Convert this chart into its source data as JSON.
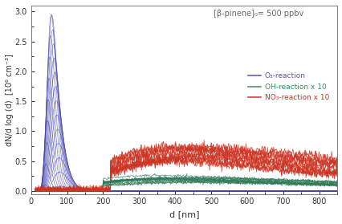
{
  "title_annotation": "[β-pinene]₀= 500 ppbv",
  "xlabel": "d [nm]",
  "ylabel": "dN/d log (d)  [10⁶ cm⁻³]",
  "xlim": [
    10,
    850
  ],
  "ylim": [
    -0.05,
    3.1
  ],
  "yticks": [
    0,
    0.5,
    1.0,
    1.5,
    2.0,
    2.5,
    3.0
  ],
  "xticks": [
    0,
    100,
    200,
    300,
    400,
    500,
    600,
    700,
    800
  ],
  "o3_color": "#4444aa",
  "oh_color": "#2e7a5a",
  "no3_color": "#cc3322",
  "legend_labels": [
    "O₃-reaction",
    "OH-reaction x 10",
    "NO₃-reaction x 10"
  ],
  "legend_colors": [
    "#5555aa",
    "#3a8a65",
    "#cc3322"
  ],
  "n_o3_curves": 22,
  "n_oh_curves": 14,
  "n_no3_curves": 12
}
